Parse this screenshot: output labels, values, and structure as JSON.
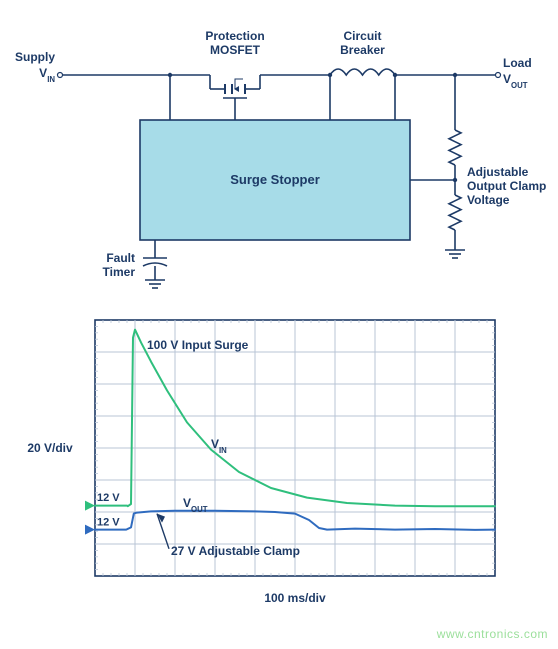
{
  "schematic": {
    "stroke_color": "#1d3a66",
    "stroke_width": 1.6,
    "fill_bg": "#ffffff",
    "block_fill": "#a7dce8",
    "label_color": "#1d3a66",
    "label_fontsize": 12,
    "block_label": "Surge Stopper",
    "labels": {
      "supply1": "Supply",
      "supply2": "V",
      "supply2sub": "IN",
      "mosfet": "Protection\nMOSFET",
      "breaker": "Circuit\nBreaker",
      "load1": "Load",
      "load2": "V",
      "load2sub": "OUT",
      "adj1": "Adjustable",
      "adj2": "Output Clamp",
      "adj3": "Voltage",
      "ftimer1": "Fault",
      "ftimer2": "Timer"
    }
  },
  "scope": {
    "border_color": "#1d3a66",
    "grid_color": "#b8c4d6",
    "background_color": "#ffffff",
    "grid_cols": 10,
    "grid_rows": 8,
    "xlabel": "100 ms/div",
    "ylabel": "20 V/div",
    "label_color": "#1d3a66",
    "label_fontsize": 12,
    "trace_vin": {
      "color": "#2fbf7d",
      "width": 2,
      "legend": "V",
      "legend_sub": "IN"
    },
    "trace_vout": {
      "color": "#2f6bbf",
      "width": 2,
      "legend": "V",
      "legend_sub": "OUT"
    },
    "annotations": {
      "surge": "100 V Input Surge",
      "v12a": "12 V",
      "v12b": "12 V",
      "clamp": "27 V Adjustable Clamp"
    },
    "vin_points": [
      [
        0.0,
        5.8
      ],
      [
        0.8,
        5.8
      ],
      [
        0.82,
        5.82
      ],
      [
        0.9,
        5.75
      ],
      [
        0.95,
        0.55
      ],
      [
        1.0,
        0.3
      ],
      [
        1.15,
        0.7
      ],
      [
        1.4,
        1.3
      ],
      [
        1.8,
        2.2
      ],
      [
        2.3,
        3.2
      ],
      [
        2.9,
        4.05
      ],
      [
        3.6,
        4.75
      ],
      [
        4.4,
        5.25
      ],
      [
        5.3,
        5.55
      ],
      [
        6.3,
        5.72
      ],
      [
        7.5,
        5.8
      ],
      [
        8.5,
        5.82
      ],
      [
        9.5,
        5.82
      ],
      [
        10.0,
        5.82
      ]
    ],
    "vout_points": [
      [
        0.0,
        6.55
      ],
      [
        0.78,
        6.55
      ],
      [
        0.9,
        6.48
      ],
      [
        0.97,
        6.05
      ],
      [
        1.05,
        6.02
      ],
      [
        1.4,
        5.98
      ],
      [
        2.0,
        5.96
      ],
      [
        3.0,
        5.96
      ],
      [
        4.0,
        5.98
      ],
      [
        4.5,
        6.0
      ],
      [
        5.0,
        6.05
      ],
      [
        5.35,
        6.25
      ],
      [
        5.6,
        6.5
      ],
      [
        5.8,
        6.55
      ],
      [
        6.5,
        6.52
      ],
      [
        7.5,
        6.55
      ],
      [
        8.5,
        6.53
      ],
      [
        9.5,
        6.56
      ],
      [
        10.0,
        6.55
      ]
    ]
  },
  "watermark": "www.cntronics.com"
}
